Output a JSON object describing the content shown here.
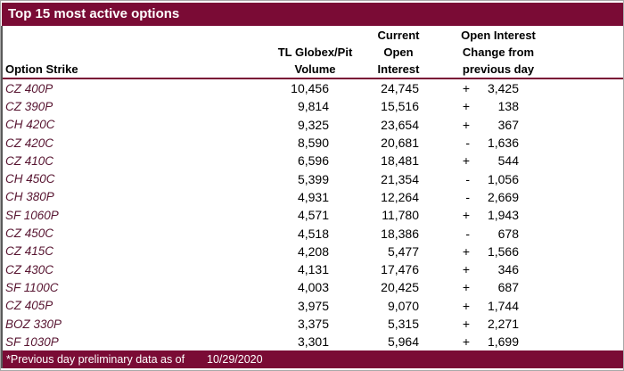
{
  "title": "Top 15 most active options",
  "colors": {
    "maroon": "#7a0b35",
    "strike_text": "#571430",
    "header_text": "#000000",
    "title_text": "#ffffff"
  },
  "columns": {
    "strike": "Option Strike",
    "volume_lines": [
      "TL Globex/Pit",
      "Volume"
    ],
    "open_interest_lines": [
      "Current",
      "Open",
      "Interest"
    ],
    "change_lines": [
      "Open Interest",
      "Change from",
      "previous day"
    ]
  },
  "rows": [
    {
      "strike": "CZ 400P",
      "volume": "10,456",
      "open_interest": "24,745",
      "sign": "+",
      "change": "3,425"
    },
    {
      "strike": "CZ 390P",
      "volume": "9,814",
      "open_interest": "15,516",
      "sign": "+",
      "change": "138"
    },
    {
      "strike": "CH 420C",
      "volume": "9,325",
      "open_interest": "23,654",
      "sign": "+",
      "change": "367"
    },
    {
      "strike": "CZ 420C",
      "volume": "8,590",
      "open_interest": "20,681",
      "sign": "-",
      "change": "1,636"
    },
    {
      "strike": "CZ 410C",
      "volume": "6,596",
      "open_interest": "18,481",
      "sign": "+",
      "change": "544"
    },
    {
      "strike": "CH 450C",
      "volume": "5,399",
      "open_interest": "21,354",
      "sign": "-",
      "change": "1,056"
    },
    {
      "strike": "CH 380P",
      "volume": "4,931",
      "open_interest": "12,264",
      "sign": "-",
      "change": "2,669"
    },
    {
      "strike": "SF 1060P",
      "volume": "4,571",
      "open_interest": "11,780",
      "sign": "+",
      "change": "1,943"
    },
    {
      "strike": "CZ 450C",
      "volume": "4,518",
      "open_interest": "18,386",
      "sign": "-",
      "change": "678"
    },
    {
      "strike": "CZ 415C",
      "volume": "4,208",
      "open_interest": "5,477",
      "sign": "+",
      "change": "1,566"
    },
    {
      "strike": "CZ 430C",
      "volume": "4,131",
      "open_interest": "17,476",
      "sign": "+",
      "change": "346"
    },
    {
      "strike": "SF 1100C",
      "volume": "4,003",
      "open_interest": "20,425",
      "sign": "+",
      "change": "687"
    },
    {
      "strike": "CZ 405P",
      "volume": "3,975",
      "open_interest": "9,070",
      "sign": "+",
      "change": "1,744"
    },
    {
      "strike": "BOZ 330P",
      "volume": "3,375",
      "open_interest": "5,315",
      "sign": "+",
      "change": "2,271"
    },
    {
      "strike": "SF 1030P",
      "volume": "3,301",
      "open_interest": "5,964",
      "sign": "+",
      "change": "1,699"
    }
  ],
  "footer": {
    "note": "*Previous day preliminary data as of",
    "date": "10/29/2020"
  }
}
